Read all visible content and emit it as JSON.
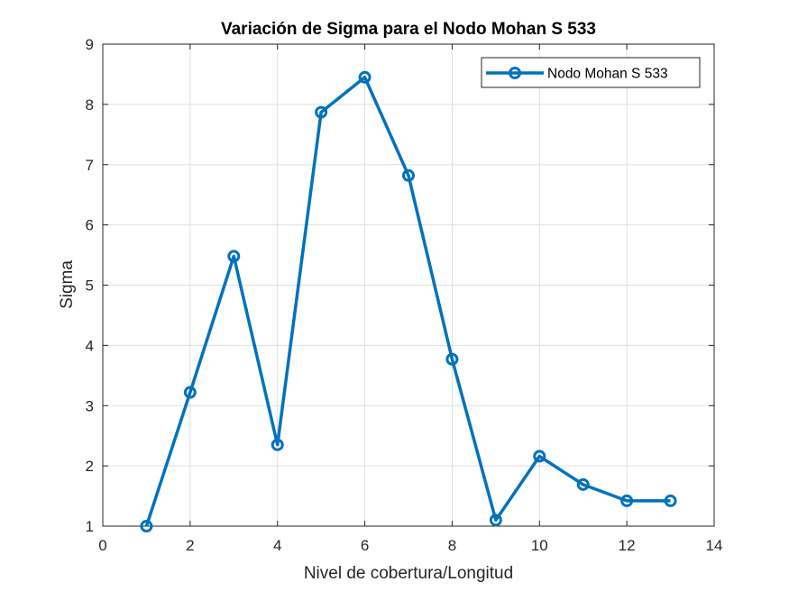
{
  "chart_data": {
    "type": "line",
    "title": "Variación de Sigma para el Nodo Mohan S 533",
    "xlabel": "Nivel de cobertura/Longitud",
    "ylabel": "Sigma",
    "xlim": [
      0,
      14
    ],
    "ylim": [
      1,
      9
    ],
    "xticks": [
      0,
      2,
      4,
      6,
      8,
      10,
      12,
      14
    ],
    "yticks": [
      1,
      2,
      3,
      4,
      5,
      6,
      7,
      8,
      9
    ],
    "grid": true,
    "legend_position": "top-right",
    "series": [
      {
        "name": "Nodo Mohan S 533",
        "color": "#0072BD",
        "marker": "circle",
        "x": [
          1,
          2,
          3,
          4,
          5,
          6,
          7,
          8,
          9,
          10,
          11,
          12,
          13
        ],
        "y": [
          1.0,
          3.22,
          5.48,
          2.35,
          7.87,
          8.45,
          6.82,
          3.77,
          1.1,
          2.16,
          1.69,
          1.42,
          1.42
        ]
      }
    ]
  }
}
